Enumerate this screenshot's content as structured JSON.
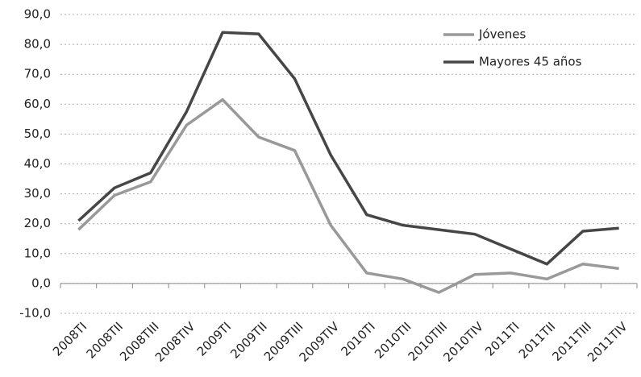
{
  "chart_data": {
    "type": "line",
    "categories": [
      "2008TI",
      "2008TII",
      "2008TIII",
      "2008TIV",
      "2009TI",
      "2009TII",
      "2009TIII",
      "2009TIV",
      "2010TI",
      "2010TII",
      "2010TIII",
      "2010TIV",
      "2011TI",
      "2011TII",
      "2011TIII",
      "2011TIV"
    ],
    "series": [
      {
        "name": "Jóvenes",
        "color": "#999999",
        "values": [
          18.0,
          29.5,
          34.0,
          53.0,
          61.5,
          49.0,
          44.5,
          19.5,
          3.5,
          1.5,
          -3.0,
          3.0,
          3.5,
          1.5,
          6.5,
          5.0
        ]
      },
      {
        "name": "Mayores 45 años",
        "color": "#464646",
        "values": [
          21.0,
          32.0,
          37.0,
          57.5,
          84.0,
          83.5,
          68.5,
          43.0,
          23.0,
          19.5,
          18.0,
          16.5,
          11.5,
          6.5,
          17.5,
          18.5
        ]
      }
    ],
    "ylim": [
      -10,
      90
    ],
    "yticks": [
      {
        "value": -10,
        "label": "-10,0"
      },
      {
        "value": 0,
        "label": "0,0"
      },
      {
        "value": 10,
        "label": "10,0"
      },
      {
        "value": 20,
        "label": "20,0"
      },
      {
        "value": 30,
        "label": "30,0"
      },
      {
        "value": 40,
        "label": "40,0"
      },
      {
        "value": 50,
        "label": "50,0"
      },
      {
        "value": 60,
        "label": "60,0"
      },
      {
        "value": 70,
        "label": "70,0"
      },
      {
        "value": 80,
        "label": "80,0"
      },
      {
        "value": 90,
        "label": "90,0"
      }
    ],
    "grid": true,
    "legend": "top-right"
  }
}
